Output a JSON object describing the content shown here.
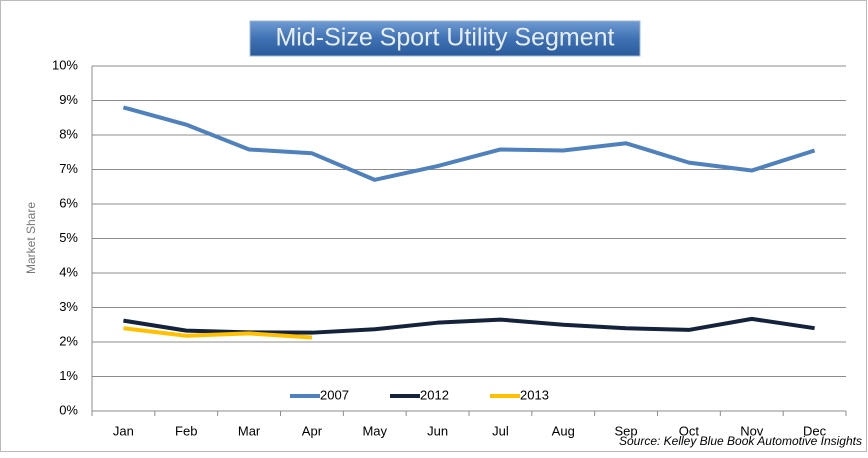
{
  "chart_data": {
    "type": "line",
    "title": "Mid-Size Sport Utility Segment",
    "y_label": "Market Share",
    "source": "Source: Kelley Blue Book Automotive Insights",
    "categories": [
      "Jan",
      "Feb",
      "Mar",
      "Apr",
      "May",
      "Jun",
      "Jul",
      "Aug",
      "Sep",
      "Oct",
      "Nov",
      "Dec"
    ],
    "series": [
      {
        "name": "2007",
        "color": "#4f81bd",
        "values": [
          8.8,
          8.3,
          7.58,
          7.47,
          6.7,
          7.1,
          7.58,
          7.55,
          7.76,
          7.2,
          6.97,
          7.55
        ]
      },
      {
        "name": "2012",
        "color": "#14233b",
        "values": [
          2.62,
          2.33,
          2.28,
          2.27,
          2.37,
          2.56,
          2.65,
          2.5,
          2.4,
          2.35,
          2.67,
          2.4
        ]
      },
      {
        "name": "2013",
        "color": "#ffc000",
        "values": [
          2.4,
          2.18,
          2.25,
          2.13,
          null,
          null,
          null,
          null,
          null,
          null,
          null,
          null
        ]
      }
    ],
    "ylim": [
      0,
      10
    ],
    "yticks": [
      {
        "value": 0,
        "label": "0%"
      },
      {
        "value": 1,
        "label": "1%"
      },
      {
        "value": 2,
        "label": "2%"
      },
      {
        "value": 3,
        "label": "3%"
      },
      {
        "value": 4,
        "label": "4%"
      },
      {
        "value": 5,
        "label": "5%"
      },
      {
        "value": 6,
        "label": "6%"
      },
      {
        "value": 7,
        "label": "7%"
      },
      {
        "value": 8,
        "label": "8%"
      },
      {
        "value": 9,
        "label": "9%"
      },
      {
        "value": 10,
        "label": "10%"
      }
    ],
    "grid": true,
    "legend": "bottom"
  }
}
